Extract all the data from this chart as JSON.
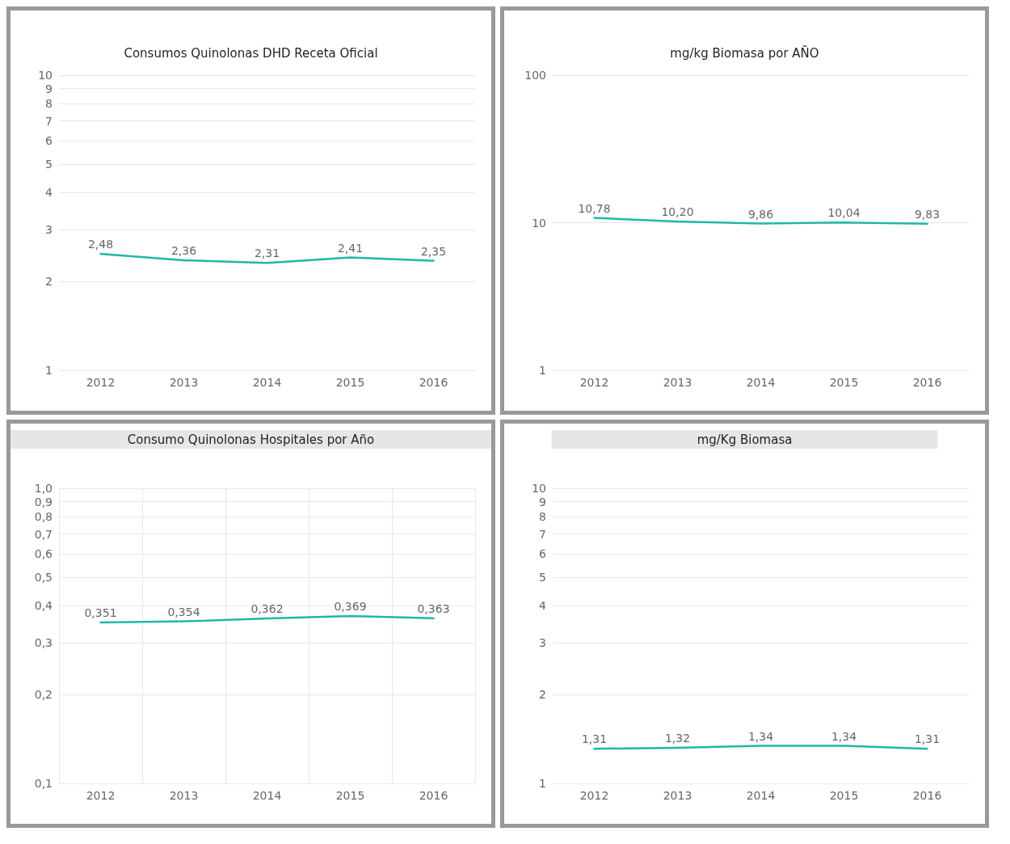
{
  "chart_data": [
    {
      "type": "line",
      "title": "Consumos Quinolonas DHD Receta Oficial",
      "categories": [
        "2012",
        "2013",
        "2014",
        "2015",
        "2016"
      ],
      "series": [
        {
          "color": "#1fb8a8",
          "values": [
            2.48,
            2.36,
            2.31,
            2.41,
            2.35
          ],
          "value_labels": [
            "2,48",
            "2,36",
            "2,31",
            "2,41",
            "2,35"
          ]
        }
      ],
      "log": "y",
      "ylim": [
        1,
        10
      ],
      "yticks": [
        1,
        2,
        3,
        4,
        5,
        6,
        7,
        8,
        9,
        10
      ],
      "grid": "y",
      "marker": "none",
      "line_style": "solid"
    },
    {
      "type": "line",
      "title": "mg/kg Biomasa por AÑO",
      "categories": [
        "2012",
        "2013",
        "2014",
        "2015",
        "2016"
      ],
      "series": [
        {
          "color": "#1fb8a8",
          "values": [
            10.78,
            10.2,
            9.86,
            10.04,
            9.83
          ],
          "value_labels": [
            "10,78",
            "10,20",
            "9,86",
            "10,04",
            "9,83"
          ]
        }
      ],
      "log": "y",
      "ylim": [
        1,
        100
      ],
      "yticks": [
        1,
        10,
        100
      ],
      "grid": "y",
      "marker": "none",
      "line_style": "solid"
    },
    {
      "type": "line",
      "title": "Consumo Quinolonas Hospitales por Año",
      "categories": [
        "2012",
        "2013",
        "2014",
        "2015",
        "2016"
      ],
      "series": [
        {
          "color": "#1fb8a8",
          "values": [
            0.351,
            0.354,
            0.362,
            0.369,
            0.363
          ],
          "value_labels": [
            "0,351",
            "0,354",
            "0,362",
            "0,369",
            "0,363"
          ]
        }
      ],
      "log": "y",
      "ylim": [
        0.1,
        1
      ],
      "yticks": [
        {
          "value": 0.1,
          "label": "0,1"
        },
        {
          "value": 0.2,
          "label": "0,2"
        },
        {
          "value": 0.3,
          "label": "0,3"
        },
        {
          "value": 0.4,
          "label": "0,4"
        },
        {
          "value": 0.5,
          "label": "0,5"
        },
        {
          "value": 0.6,
          "label": "0,6"
        },
        {
          "value": 0.7,
          "label": "0,7"
        },
        {
          "value": 0.8,
          "label": "0,8"
        },
        {
          "value": 0.9,
          "label": "0,9"
        },
        {
          "value": 1,
          "label": "1,0"
        }
      ],
      "grid": true,
      "marker": "none",
      "line_style": "solid"
    },
    {
      "type": "line",
      "title": "mg/Kg Biomasa",
      "categories": [
        "2012",
        "2013",
        "2014",
        "2015",
        "2016"
      ],
      "series": [
        {
          "color": "#1fb8a8",
          "values": [
            1.31,
            1.32,
            1.34,
            1.34,
            1.31
          ],
          "value_labels": [
            "1,31",
            "1,32",
            "1,34",
            "1,34",
            "1,31"
          ]
        }
      ],
      "log": "y",
      "ylim": [
        1,
        10
      ],
      "yticks": [
        1,
        2,
        3,
        4,
        5,
        6,
        7,
        8,
        9,
        10
      ],
      "grid": "y",
      "marker": "none",
      "line_style": "solid"
    }
  ]
}
